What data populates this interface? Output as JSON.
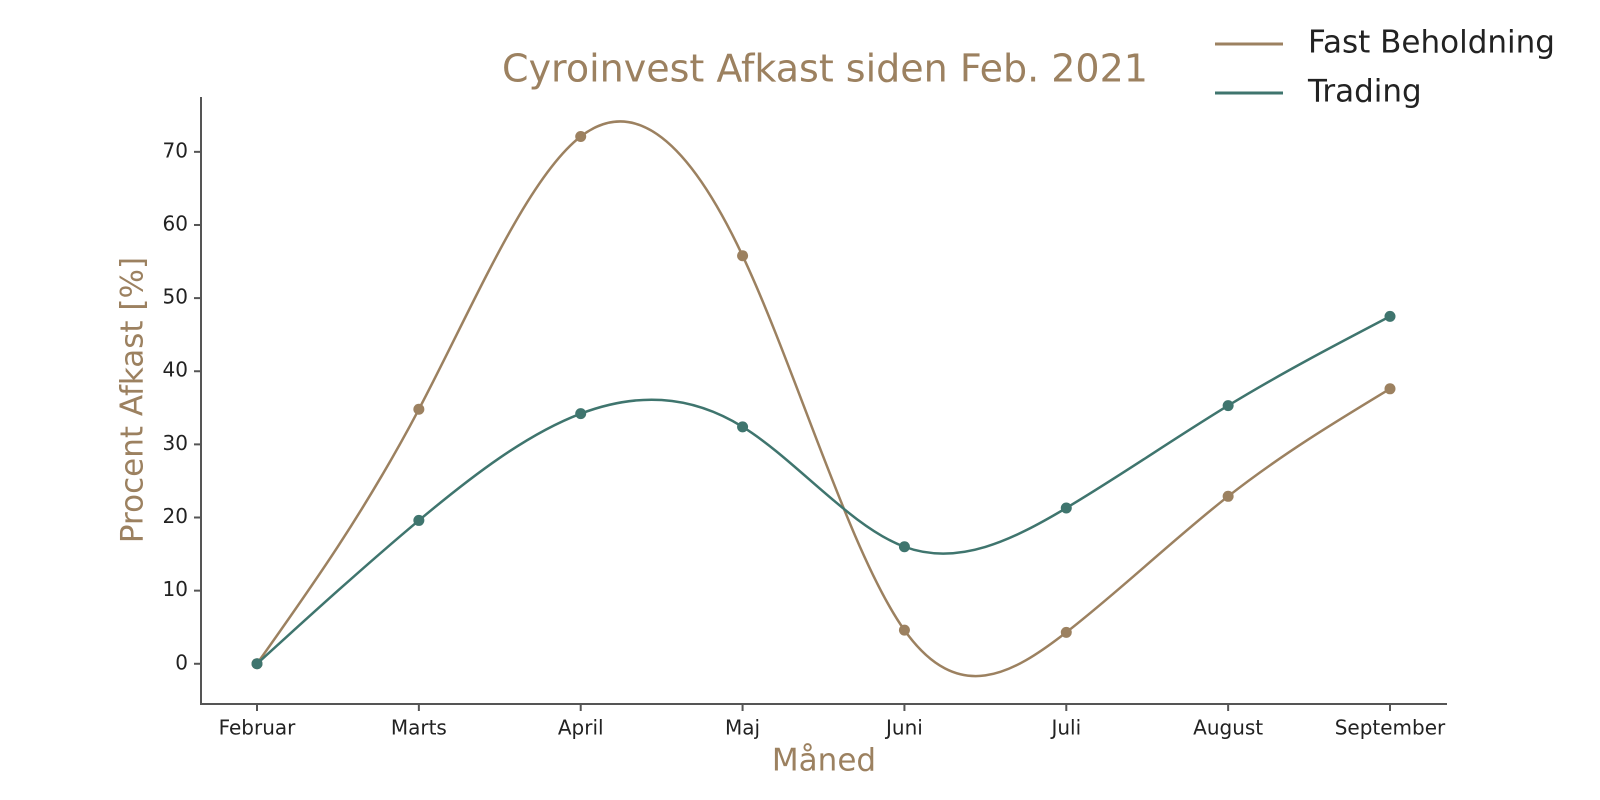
{
  "chart_data": {
    "type": "line",
    "title": "Cyroinvest Afkast siden Feb. 2021",
    "x_label": "Måned",
    "y_label": "Procent Afkast [%]",
    "categories": [
      "Februar",
      "Marts",
      "April",
      "Maj",
      "Juni",
      "Juli",
      "August",
      "September"
    ],
    "series": [
      {
        "name": "Fast Beholdning",
        "color": "#9c8160",
        "values": [
          0,
          34.8,
          72.1,
          55.8,
          4.6,
          4.3,
          22.9,
          37.6
        ]
      },
      {
        "name": "Trading",
        "color": "#3f756e",
        "values": [
          0,
          19.6,
          34.2,
          32.4,
          16.0,
          21.3,
          35.3,
          47.5
        ]
      }
    ],
    "ylim": [
      -5.5,
      77.5
    ],
    "yticks": [
      0,
      10,
      20,
      30,
      40,
      50,
      60,
      70
    ],
    "smooth": true,
    "markers": true,
    "legend": "upper right"
  }
}
